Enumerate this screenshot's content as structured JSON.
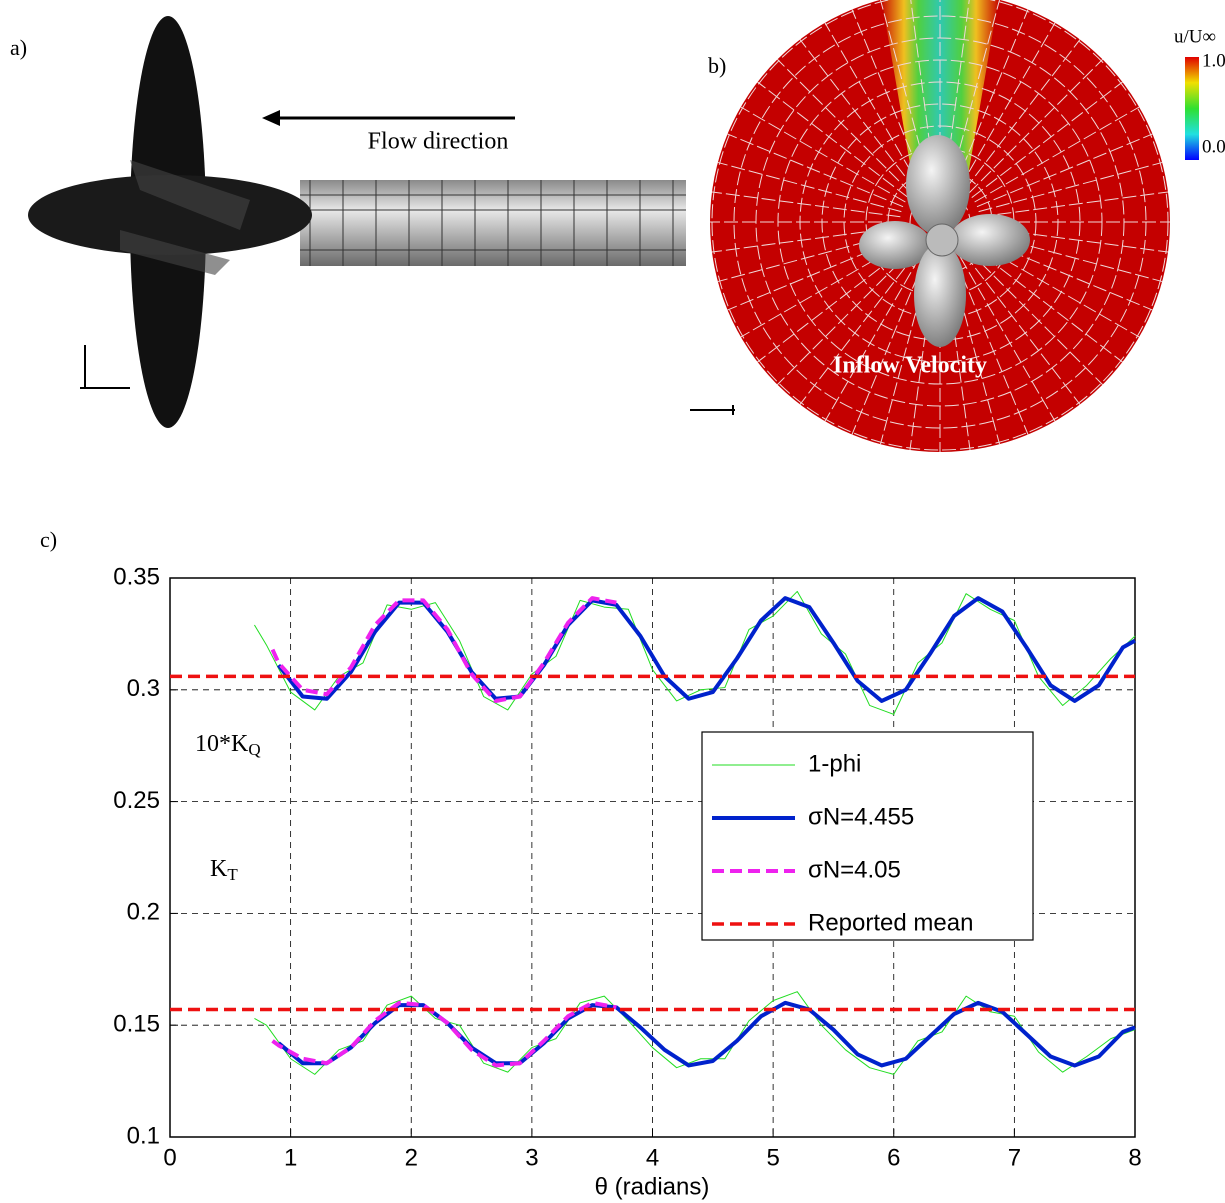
{
  "panels": {
    "a": {
      "label": "a)",
      "flow": "Flow direction"
    },
    "b": {
      "label": "b)",
      "caption": "Inflow Velocity",
      "colorbar": {
        "title": "u/U∞",
        "ticks": [
          {
            "value": 1,
            "label": "1.0"
          },
          {
            "value": 0,
            "label": "0.0"
          }
        ]
      }
    },
    "c": {
      "label": "c)"
    }
  },
  "chart_data": {
    "type": "line",
    "xlabel": "θ (radians)",
    "xlim": [
      0,
      8
    ],
    "ylim": [
      0.1,
      0.35
    ],
    "xticks": [
      0,
      1,
      2,
      3,
      4,
      5,
      6,
      7,
      8
    ],
    "yticks": [
      0.1,
      0.15,
      0.2,
      0.25,
      0.3,
      0.35
    ],
    "grid": true,
    "annotations": [
      {
        "text": "10*K",
        "sub": "Q"
      },
      {
        "text": "K",
        "sub": "T"
      }
    ],
    "series": [
      {
        "name": "1-phi",
        "color": "#22dd22",
        "style": "solid",
        "x": [
          0.7,
          0.8,
          1.0,
          1.2,
          1.4,
          1.6,
          1.8,
          2.0,
          2.2,
          2.4,
          2.6,
          2.8,
          3.0,
          3.2,
          3.4,
          3.6,
          3.8,
          4.0,
          4.2,
          4.4,
          4.6,
          4.8,
          5.0,
          5.2,
          5.4,
          5.6,
          5.8,
          6.0,
          6.2,
          6.4,
          6.6,
          6.8,
          7.0,
          7.2,
          7.4,
          7.6,
          7.8,
          8.0
        ],
        "kq": [
          0.329,
          0.32,
          0.299,
          0.291,
          0.306,
          0.312,
          0.338,
          0.336,
          0.339,
          0.322,
          0.297,
          0.291,
          0.307,
          0.315,
          0.34,
          0.337,
          0.336,
          0.309,
          0.295,
          0.3,
          0.301,
          0.327,
          0.333,
          0.344,
          0.325,
          0.316,
          0.293,
          0.289,
          0.312,
          0.321,
          0.343,
          0.336,
          0.331,
          0.306,
          0.293,
          0.302,
          0.314,
          0.324
        ],
        "kt": [
          0.153,
          0.15,
          0.135,
          0.128,
          0.139,
          0.143,
          0.159,
          0.163,
          0.153,
          0.15,
          0.133,
          0.129,
          0.14,
          0.144,
          0.16,
          0.163,
          0.152,
          0.14,
          0.131,
          0.135,
          0.135,
          0.152,
          0.161,
          0.165,
          0.15,
          0.139,
          0.131,
          0.128,
          0.143,
          0.147,
          0.163,
          0.156,
          0.154,
          0.138,
          0.129,
          0.136,
          0.144,
          0.148
        ]
      },
      {
        "name": "σN=4.455",
        "color": "#0022cc",
        "style": "solid",
        "x": [
          0.9,
          1.1,
          1.3,
          1.5,
          1.7,
          1.9,
          2.1,
          2.3,
          2.5,
          2.7,
          2.9,
          3.1,
          3.3,
          3.5,
          3.7,
          3.9,
          4.1,
          4.3,
          4.5,
          4.7,
          4.9,
          5.1,
          5.3,
          5.5,
          5.7,
          5.9,
          6.1,
          6.3,
          6.5,
          6.7,
          6.9,
          7.1,
          7.3,
          7.5,
          7.7,
          7.9,
          8.0
        ],
        "kq": [
          0.311,
          0.297,
          0.296,
          0.308,
          0.326,
          0.339,
          0.339,
          0.326,
          0.308,
          0.296,
          0.297,
          0.311,
          0.329,
          0.34,
          0.338,
          0.324,
          0.306,
          0.296,
          0.299,
          0.314,
          0.331,
          0.341,
          0.337,
          0.321,
          0.304,
          0.295,
          0.3,
          0.316,
          0.333,
          0.341,
          0.335,
          0.319,
          0.302,
          0.295,
          0.302,
          0.319,
          0.322
        ],
        "kt": [
          0.142,
          0.133,
          0.133,
          0.14,
          0.151,
          0.159,
          0.159,
          0.151,
          0.14,
          0.133,
          0.133,
          0.142,
          0.153,
          0.159,
          0.158,
          0.149,
          0.139,
          0.132,
          0.134,
          0.143,
          0.154,
          0.16,
          0.157,
          0.148,
          0.137,
          0.132,
          0.135,
          0.145,
          0.155,
          0.16,
          0.156,
          0.146,
          0.136,
          0.132,
          0.136,
          0.147,
          0.149
        ]
      },
      {
        "name": "σN=4.05",
        "color": "#ee22ee",
        "style": "dashed",
        "x": [
          0.85,
          0.9,
          1.1,
          1.3,
          1.5,
          1.7,
          1.9,
          2.1,
          2.3,
          2.5,
          2.7,
          2.9,
          3.1,
          3.3,
          3.5,
          3.7
        ],
        "kq": [
          0.318,
          0.312,
          0.3,
          0.298,
          0.31,
          0.329,
          0.34,
          0.34,
          0.327,
          0.307,
          0.295,
          0.297,
          0.312,
          0.33,
          0.341,
          0.339
        ],
        "kt": [
          0.143,
          0.141,
          0.135,
          0.133,
          0.14,
          0.152,
          0.16,
          0.159,
          0.151,
          0.139,
          0.132,
          0.133,
          0.143,
          0.154,
          0.16,
          0.158
        ]
      },
      {
        "name": "Reported mean",
        "color": "#ee1111",
        "style": "dashed",
        "x": [
          0,
          8
        ],
        "kq": [
          0.306,
          0.306
        ],
        "kt": [
          0.157,
          0.157
        ]
      }
    ]
  }
}
